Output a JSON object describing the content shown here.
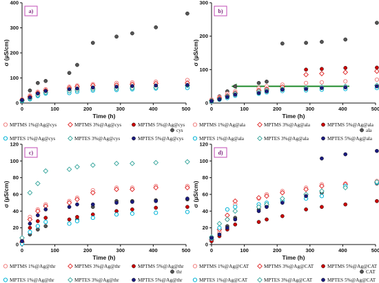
{
  "chart_data": [
    {
      "panel": "a)",
      "type": "scatter",
      "xlabel": "Time (h)",
      "ylabel": "σ (µS/cm)",
      "xlim": [
        0,
        500
      ],
      "ylim": [
        0,
        400
      ],
      "xticks": [
        0,
        100,
        200,
        300,
        400,
        500
      ],
      "yticks": [
        0,
        100,
        200,
        300,
        400
      ],
      "extra_label": "cys",
      "series": [
        {
          "name": "MPTMS 1%@Ag@cys",
          "color": "#f08080",
          "marker": "circle-open",
          "x": [
            0,
            24,
            48,
            72,
            144,
            168,
            216,
            288,
            336,
            408,
            504
          ],
          "y": [
            15,
            30,
            45,
            55,
            65,
            70,
            75,
            80,
            82,
            85,
            92
          ]
        },
        {
          "name": "MPTMS 3%@Ag@cys",
          "color": "#e03030",
          "marker": "diamond-open",
          "x": [
            0,
            24,
            48,
            72,
            144,
            168,
            216,
            288,
            336,
            408,
            504
          ],
          "y": [
            12,
            25,
            40,
            50,
            60,
            65,
            70,
            72,
            75,
            78,
            80
          ]
        },
        {
          "name": "MPTMS 5%@Ag@cys",
          "color": "#cc0000",
          "marker": "circle-filled",
          "x": [
            0,
            24,
            48,
            72,
            144,
            168,
            216,
            288,
            336,
            408,
            504
          ],
          "y": [
            10,
            20,
            35,
            45,
            52,
            56,
            60,
            62,
            64,
            66,
            68
          ]
        },
        {
          "name": "MPTES 1%@Ag@cys",
          "color": "#00b3d6",
          "marker": "circle-open",
          "x": [
            0,
            24,
            48,
            72,
            144,
            168,
            216,
            288,
            336,
            408,
            504
          ],
          "y": [
            8,
            15,
            28,
            38,
            40,
            45,
            50,
            52,
            55,
            58,
            60
          ]
        },
        {
          "name": "MPTES 3%@Ag@cys",
          "color": "#3fa9a0",
          "marker": "diamond-open",
          "x": [
            0,
            24,
            48,
            72,
            144,
            168,
            216,
            288,
            336,
            408,
            504
          ],
          "y": [
            10,
            18,
            32,
            42,
            48,
            52,
            56,
            58,
            60,
            62,
            70
          ]
        },
        {
          "name": "MPTES 5%@Ag@cys",
          "color": "#1a1a80",
          "marker": "circle-filled",
          "x": [
            0,
            24,
            48,
            72,
            144,
            168,
            216,
            288,
            336,
            408,
            504
          ],
          "y": [
            12,
            22,
            38,
            48,
            55,
            58,
            62,
            65,
            68,
            70,
            72
          ]
        },
        {
          "name": "cys",
          "color": "#555555",
          "marker": "circle-filled",
          "x": [
            0,
            24,
            48,
            72,
            144,
            168,
            216,
            288,
            336,
            408,
            504
          ],
          "y": [
            10,
            50,
            80,
            88,
            120,
            152,
            240,
            265,
            278,
            302,
            357
          ]
        }
      ]
    },
    {
      "panel": "b)",
      "type": "scatter",
      "xlabel": "Time (h)",
      "ylabel": "σ (µS/cm)",
      "xlim": [
        0,
        500
      ],
      "ylim": [
        0,
        300
      ],
      "xticks": [
        0,
        100,
        200,
        300,
        400,
        500
      ],
      "yticks": [
        0,
        100,
        200,
        300
      ],
      "extra_label": "ala",
      "series": [
        {
          "name": "MPTMS 1%@Ag@ala",
          "color": "#f08080",
          "marker": "circle-open",
          "x": [
            0,
            24,
            48,
            72,
            144,
            168,
            216,
            288,
            336,
            408,
            504
          ],
          "y": [
            10,
            18,
            28,
            35,
            45,
            50,
            55,
            60,
            62,
            65,
            70
          ]
        },
        {
          "name": "MPTMS 3%@Ag@ala",
          "color": "#e03030",
          "marker": "diamond-open",
          "x": [
            0,
            24,
            48,
            72,
            144,
            168,
            216,
            288,
            336,
            408,
            504
          ],
          "y": [
            8,
            15,
            22,
            30,
            38,
            42,
            48,
            85,
            88,
            92,
            95
          ]
        },
        {
          "name": "MPTMS 5%@Ag@ala",
          "color": "#cc0000",
          "marker": "circle-filled",
          "x": [
            0,
            24,
            48,
            72,
            144,
            168,
            216,
            288,
            336,
            408,
            504
          ],
          "y": [
            6,
            12,
            18,
            25,
            32,
            36,
            40,
            100,
            102,
            105,
            106
          ]
        },
        {
          "name": "MPTES 1%@Ag@ala",
          "color": "#00b3d6",
          "marker": "circle-open",
          "x": [
            0,
            24,
            48,
            72,
            144,
            168,
            216,
            288,
            336,
            408,
            504
          ],
          "y": [
            5,
            10,
            15,
            22,
            28,
            32,
            36,
            38,
            40,
            42,
            45
          ]
        },
        {
          "name": "MPTES 3%@Ag@ala",
          "color": "#3fa9a0",
          "marker": "diamond-open",
          "x": [
            0,
            24,
            48,
            72,
            144,
            168,
            216,
            288,
            336,
            408,
            504
          ],
          "y": [
            7,
            12,
            20,
            28,
            34,
            38,
            42,
            45,
            48,
            50,
            53
          ]
        },
        {
          "name": "MPTES 5%@Ag@ala",
          "color": "#1a1a80",
          "marker": "circle-filled",
          "x": [
            0,
            24,
            48,
            72,
            144,
            168,
            216,
            288,
            336,
            408,
            504
          ],
          "y": [
            6,
            11,
            18,
            25,
            30,
            35,
            40,
            42,
            45,
            47,
            50
          ]
        },
        {
          "name": "ala",
          "color": "#555555",
          "marker": "circle-filled",
          "x": [
            0,
            24,
            48,
            72,
            144,
            168,
            216,
            288,
            336,
            408,
            504
          ],
          "y": [
            8,
            20,
            35,
            50,
            60,
            64,
            178,
            180,
            183,
            190,
            240
          ]
        }
      ],
      "arrow": {
        "x_from": 420,
        "x_to": 60,
        "y": 50,
        "color": "#1f8a2a"
      }
    },
    {
      "panel": "c)",
      "type": "scatter",
      "xlabel": "Time (h)",
      "ylabel": "σ (µS/cm)",
      "xlim": [
        0,
        500
      ],
      "ylim": [
        0,
        120
      ],
      "xticks": [
        0,
        100,
        200,
        300,
        400,
        500
      ],
      "yticks": [
        0,
        20,
        40,
        60,
        80,
        100,
        120
      ],
      "extra_label": "thr",
      "series": [
        {
          "name": "MPTMS 1%@Ag@thr",
          "color": "#f08080",
          "marker": "circle-open",
          "x": [
            0,
            24,
            48,
            72,
            144,
            168,
            216,
            288,
            336,
            408,
            504
          ],
          "y": [
            5,
            33,
            42,
            48,
            52,
            56,
            65,
            68,
            68,
            70,
            70
          ]
        },
        {
          "name": "MPTMS 3%@Ag@thr",
          "color": "#e03030",
          "marker": "diamond-open",
          "x": [
            0,
            24,
            48,
            72,
            144,
            168,
            216,
            288,
            336,
            408,
            504
          ],
          "y": [
            3,
            30,
            40,
            46,
            50,
            54,
            62,
            66,
            66,
            68,
            68
          ]
        },
        {
          "name": "MPTMS 5%@Ag@thr",
          "color": "#cc0000",
          "marker": "circle-filled",
          "x": [
            0,
            24,
            48,
            72,
            144,
            168,
            216,
            288,
            336,
            408,
            504
          ],
          "y": [
            2,
            20,
            28,
            32,
            30,
            33,
            36,
            40,
            42,
            44,
            45
          ]
        },
        {
          "name": "MPTES 1%@Ag@thr",
          "color": "#00b3d6",
          "marker": "circle-open",
          "x": [
            0,
            24,
            48,
            72,
            144,
            168,
            216,
            288,
            336,
            408,
            504
          ],
          "y": [
            1,
            15,
            22,
            27,
            25,
            28,
            32,
            36,
            37,
            38,
            39
          ]
        },
        {
          "name": "MPTES 3%@Ag@thr",
          "color": "#3fa9a0",
          "marker": "diamond-open",
          "x": [
            0,
            24,
            48,
            72,
            144,
            168,
            216,
            288,
            336,
            408,
            504
          ],
          "y": [
            8,
            62,
            73,
            88,
            90,
            93,
            95,
            97,
            97,
            98,
            99
          ]
        },
        {
          "name": "MPTES 5%@Ag@thr",
          "color": "#1a1a80",
          "marker": "circle-filled",
          "x": [
            0,
            24,
            48,
            72,
            144,
            168,
            216,
            288,
            336,
            408,
            504
          ],
          "y": [
            4,
            25,
            35,
            42,
            45,
            48,
            48,
            50,
            51,
            52,
            55
          ]
        },
        {
          "name": "thr",
          "color": "#555555",
          "marker": "circle-filled",
          "x": [
            0,
            24,
            48,
            72,
            144,
            168,
            216,
            288,
            336,
            408,
            504
          ],
          "y": [
            3,
            12,
            18,
            22,
            25,
            30,
            45,
            52,
            52,
            53,
            54
          ]
        }
      ]
    },
    {
      "panel": "d)",
      "type": "scatter",
      "xlabel": "Time (h)",
      "ylabel": "σ (µS/cm)",
      "xlim": [
        0,
        500
      ],
      "ylim": [
        0,
        120
      ],
      "xticks": [
        0,
        100,
        200,
        300,
        400,
        500
      ],
      "yticks": [
        0,
        20,
        40,
        60,
        80,
        100,
        120
      ],
      "extra_label": "CAT",
      "series": [
        {
          "name": "MPTMS 1%@Ag@CAT",
          "color": "#f08080",
          "marker": "circle-open",
          "x": [
            0,
            24,
            48,
            72,
            144,
            168,
            216,
            288,
            336,
            408,
            504
          ],
          "y": [
            5,
            15,
            30,
            48,
            55,
            60,
            64,
            68,
            72,
            73,
            76
          ]
        },
        {
          "name": "MPTMS 3%@Ag@CAT",
          "color": "#e03030",
          "marker": "diamond-open",
          "x": [
            0,
            24,
            48,
            72,
            144,
            168,
            216,
            288,
            336,
            408,
            504
          ],
          "y": [
            6,
            18,
            35,
            52,
            56,
            58,
            62,
            66,
            70,
            72,
            74
          ]
        },
        {
          "name": "MPTMS 5%@Ag@CAT",
          "color": "#cc0000",
          "marker": "circle-filled",
          "x": [
            0,
            24,
            48,
            72,
            144,
            168,
            216,
            288,
            336,
            408,
            504
          ],
          "y": [
            4,
            10,
            18,
            24,
            27,
            30,
            34,
            42,
            45,
            48,
            52
          ]
        },
        {
          "name": "MPTES 1%@Ag@CAT",
          "color": "#00b3d6",
          "marker": "circle-open",
          "x": [
            0,
            24,
            48,
            72,
            144,
            168,
            216,
            288,
            336,
            408,
            504
          ],
          "y": [
            7,
            20,
            42,
            45,
            48,
            50,
            52,
            55,
            58,
            70,
            74
          ]
        },
        {
          "name": "MPTES 3%@Ag@CAT",
          "color": "#3fa9a0",
          "marker": "diamond-open",
          "x": [
            0,
            24,
            48,
            72,
            144,
            168,
            216,
            288,
            336,
            408,
            504
          ],
          "y": [
            9,
            25,
            30,
            40,
            45,
            48,
            55,
            60,
            64,
            68,
            75
          ]
        },
        {
          "name": "MPTES 5%@Ag@CAT",
          "color": "#1a1a80",
          "marker": "circle-filled",
          "x": [
            0,
            24,
            48,
            72,
            144,
            168,
            216,
            288,
            336,
            408,
            504
          ],
          "y": [
            8,
            12,
            20,
            30,
            40,
            45,
            50,
            58,
            103,
            108,
            112
          ]
        },
        {
          "name": "CAT",
          "color": "#555555",
          "marker": "circle-filled",
          "x": [
            0,
            24,
            48,
            72,
            144,
            168,
            216,
            288,
            336,
            408,
            504
          ],
          "y": [
            6,
            14,
            22,
            32,
            42,
            46,
            52,
            60,
            62,
            70,
            73
          ]
        }
      ]
    }
  ]
}
